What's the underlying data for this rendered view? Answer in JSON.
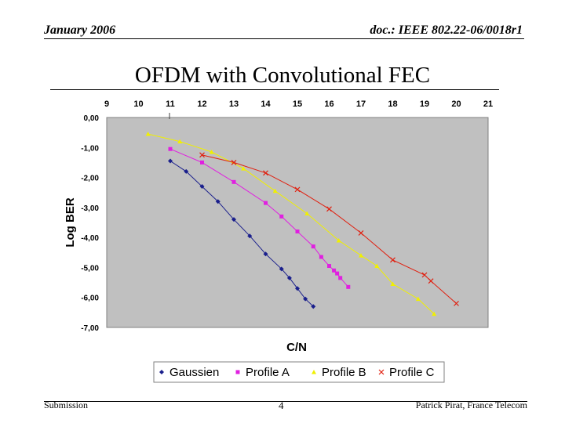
{
  "header": {
    "date": "January 2006",
    "doc_ref": "doc.: IEEE 802.22-06/0018r1"
  },
  "slide": {
    "title": "OFDM with Convolutional FEC"
  },
  "footer": {
    "left": "Submission",
    "page_number": "4",
    "author": "Patrick Pirat, France Telecom"
  },
  "chart_data": {
    "type": "line",
    "title": "",
    "xlabel": "C/N",
    "ylabel": "Log BER",
    "xlim": [
      9,
      21
    ],
    "ylim": [
      -7,
      0
    ],
    "x_ticks": [
      "9",
      "10",
      "11",
      "12",
      "13",
      "14",
      "15",
      "16",
      "17",
      "18",
      "19",
      "20",
      "21"
    ],
    "y_ticks": [
      "0,00",
      "-1,00",
      "-2,00",
      "-3,00",
      "-4,00",
      "-5,00",
      "-6,00",
      "-7,00"
    ],
    "grid": false,
    "legend_position": "bottom",
    "series": [
      {
        "name": "Gaussien",
        "color": "#1a1f8c",
        "marker": "diamond",
        "points": [
          [
            11,
            -1.45
          ],
          [
            11.5,
            -1.8
          ],
          [
            12,
            -2.3
          ],
          [
            12.5,
            -2.8
          ],
          [
            13,
            -3.4
          ],
          [
            13.5,
            -3.95
          ],
          [
            14,
            -4.55
          ],
          [
            14.5,
            -5.05
          ],
          [
            14.75,
            -5.35
          ],
          [
            15,
            -5.7
          ],
          [
            15.25,
            -6.05
          ],
          [
            15.5,
            -6.3
          ]
        ]
      },
      {
        "name": "Profile A",
        "color": "#e020e0",
        "marker": "square",
        "points": [
          [
            11,
            -1.05
          ],
          [
            12,
            -1.5
          ],
          [
            13,
            -2.15
          ],
          [
            14,
            -2.85
          ],
          [
            14.5,
            -3.3
          ],
          [
            15,
            -3.8
          ],
          [
            15.5,
            -4.3
          ],
          [
            15.75,
            -4.65
          ],
          [
            16,
            -4.95
          ],
          [
            16.15,
            -5.1
          ],
          [
            16.25,
            -5.2
          ],
          [
            16.35,
            -5.35
          ],
          [
            16.6,
            -5.65
          ]
        ]
      },
      {
        "name": "Profile B",
        "color": "#f0f000",
        "marker": "triangle",
        "points": [
          [
            10.3,
            -0.55
          ],
          [
            11.3,
            -0.8
          ],
          [
            12.3,
            -1.15
          ],
          [
            13.3,
            -1.7
          ],
          [
            14.3,
            -2.45
          ],
          [
            15.3,
            -3.2
          ],
          [
            16.3,
            -4.1
          ],
          [
            17,
            -4.6
          ],
          [
            17.5,
            -4.95
          ],
          [
            18,
            -5.55
          ],
          [
            18.8,
            -6.05
          ],
          [
            19.3,
            -6.55
          ]
        ]
      },
      {
        "name": "Profile C",
        "color": "#e02010",
        "marker": "cross",
        "points": [
          [
            12,
            -1.25
          ],
          [
            13,
            -1.5
          ],
          [
            14,
            -1.85
          ],
          [
            15,
            -2.4
          ],
          [
            16,
            -3.05
          ],
          [
            17,
            -3.85
          ],
          [
            18,
            -4.75
          ],
          [
            19,
            -5.25
          ],
          [
            19.2,
            -5.45
          ],
          [
            20,
            -6.2
          ]
        ]
      }
    ]
  }
}
